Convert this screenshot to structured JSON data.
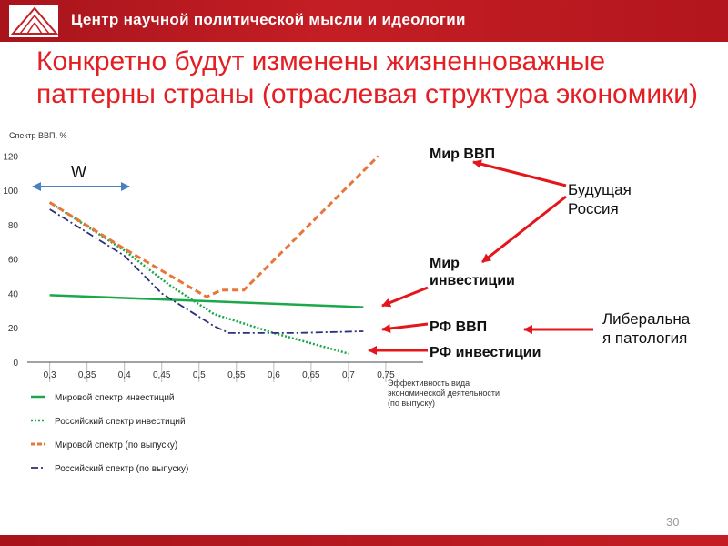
{
  "header": {
    "title": "Центр научной политической мысли и идеологии"
  },
  "slide": {
    "title": "Конкретно будут изменены жизненноважные паттерны страны (отраслевая структура экономики)",
    "page_number": "30"
  },
  "annotations": {
    "world_gdp": "Мир ВВП",
    "world_investment": "Мир инвестиции",
    "rf_gdp": "РФ ВВП",
    "rf_investment": "РФ инвестиции",
    "future_russia": "Будущая Россия",
    "liberal_pathology": "Либеральная патология",
    "w_label": "W"
  },
  "colors": {
    "brand_red": "#c41e24",
    "title_red": "#e41f23",
    "arrow_red": "#e4161c",
    "w_arrow": "#4a7fc4"
  },
  "chart_data": {
    "type": "line",
    "ylabel": "Спектр ВВП, %",
    "xlabel": "Эффективность вида экономической деятельности (по выпуску)",
    "x_ticks": [
      "0,3",
      "0,35",
      "0,4",
      "0,45",
      "0,5",
      "0,55",
      "0,6",
      "0,65",
      "0,7",
      "0,75"
    ],
    "y_ticks": [
      "0",
      "20",
      "40",
      "60",
      "80",
      "100",
      "120"
    ],
    "xlim": [
      0.27,
      0.8
    ],
    "ylim": [
      0,
      125
    ],
    "series": [
      {
        "name": "Мировой спектр инвестиций",
        "color": "#1aa84a",
        "style": "solid",
        "x": [
          0.3,
          0.72
        ],
        "y": [
          39,
          32
        ]
      },
      {
        "name": "Российский спектр инвестиций",
        "color": "#1aa84a",
        "style": "dotted",
        "x": [
          0.3,
          0.4,
          0.46,
          0.52,
          0.6,
          0.7
        ],
        "y": [
          93,
          65,
          45,
          28,
          17,
          5
        ]
      },
      {
        "name": "Мировой спектр (по выпуску)",
        "color": "#e8753a",
        "style": "dashed",
        "x": [
          0.3,
          0.4,
          0.51,
          0.53,
          0.56,
          0.74
        ],
        "y": [
          93,
          66,
          38,
          42,
          42,
          120
        ]
      },
      {
        "name": "Российский спектр (по выпуску)",
        "color": "#2c2f7a",
        "style": "dashdot",
        "x": [
          0.3,
          0.4,
          0.45,
          0.52,
          0.54,
          0.63,
          0.72
        ],
        "y": [
          89,
          62,
          40,
          21,
          17,
          17,
          18
        ]
      }
    ]
  }
}
